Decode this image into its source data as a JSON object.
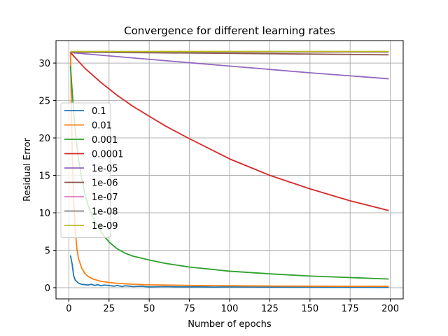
{
  "chart_data": {
    "type": "line",
    "title": "Convergence for different learning rates",
    "xlabel": "Number of epochs",
    "ylabel": "Residual Error",
    "xlim": [
      -8,
      208
    ],
    "ylim": [
      -1.5,
      33.0
    ],
    "xticks": [
      0,
      25,
      50,
      75,
      100,
      125,
      150,
      175,
      200
    ],
    "yticks": [
      0,
      5,
      10,
      15,
      20,
      25,
      30
    ],
    "grid": true,
    "legend_position": "center-left",
    "series": [
      {
        "name": "0.1",
        "color": "#1f77b4",
        "x": [
          1,
          2,
          3,
          4,
          5,
          6,
          8,
          10,
          12,
          14,
          16,
          18,
          20,
          22,
          25,
          28,
          30,
          33,
          35,
          38,
          40,
          45,
          50,
          60,
          70,
          80,
          90,
          100,
          120,
          140,
          160,
          180,
          199
        ],
        "y": [
          4.3,
          3.2,
          1.6,
          1.0,
          0.8,
          0.6,
          0.45,
          0.4,
          0.35,
          0.45,
          0.3,
          0.4,
          0.25,
          0.35,
          0.3,
          0.2,
          0.3,
          0.15,
          0.25,
          0.2,
          0.15,
          0.2,
          0.1,
          0.15,
          0.1,
          0.12,
          0.08,
          0.1,
          0.08,
          0.07,
          0.06,
          0.06,
          0.05
        ]
      },
      {
        "name": "0.01",
        "color": "#ff7f0e",
        "x": [
          1,
          2,
          3,
          4,
          5,
          6,
          8,
          10,
          12,
          15,
          20,
          25,
          30,
          40,
          50,
          75,
          100,
          125,
          150,
          175,
          199
        ],
        "y": [
          31.5,
          19.0,
          11.5,
          7.6,
          5.2,
          3.9,
          2.6,
          1.9,
          1.5,
          1.15,
          0.85,
          0.7,
          0.58,
          0.45,
          0.38,
          0.3,
          0.25,
          0.22,
          0.2,
          0.19,
          0.18
        ]
      },
      {
        "name": "0.001",
        "color": "#2ca02c",
        "x": [
          1,
          2,
          3,
          4,
          5,
          6,
          8,
          10,
          12,
          15,
          20,
          25,
          30,
          35,
          40,
          50,
          60,
          75,
          100,
          125,
          150,
          175,
          199
        ],
        "y": [
          29.6,
          26.5,
          23.5,
          21.0,
          19.0,
          17.2,
          14.6,
          12.5,
          11.0,
          9.3,
          7.4,
          6.1,
          5.2,
          4.6,
          4.2,
          3.7,
          3.25,
          2.75,
          2.2,
          1.85,
          1.55,
          1.35,
          1.15
        ]
      },
      {
        "name": "0.0001",
        "color": "#d62728",
        "x": [
          1,
          10,
          20,
          30,
          40,
          50,
          60,
          75,
          100,
          125,
          150,
          175,
          199
        ],
        "y": [
          31.4,
          29.3,
          27.4,
          25.7,
          24.2,
          22.9,
          21.6,
          19.9,
          17.2,
          15.0,
          13.2,
          11.6,
          10.3
        ]
      },
      {
        "name": "1e-05",
        "color": "#9467bd",
        "x": [
          1,
          50,
          100,
          150,
          199
        ],
        "y": [
          31.4,
          30.5,
          29.6,
          28.7,
          27.9
        ]
      },
      {
        "name": "1e-06",
        "color": "#8c564b",
        "x": [
          1,
          100,
          199
        ],
        "y": [
          31.45,
          31.3,
          31.1
        ]
      },
      {
        "name": "1e-07",
        "color": "#e377c2",
        "x": [
          1,
          199
        ],
        "y": [
          31.5,
          31.45
        ]
      },
      {
        "name": "1e-08",
        "color": "#7f7f7f",
        "x": [
          1,
          199
        ],
        "y": [
          31.5,
          31.5
        ]
      },
      {
        "name": "1e-09",
        "color": "#bcbd22",
        "x": [
          1,
          199
        ],
        "y": [
          31.55,
          31.55
        ]
      }
    ]
  }
}
